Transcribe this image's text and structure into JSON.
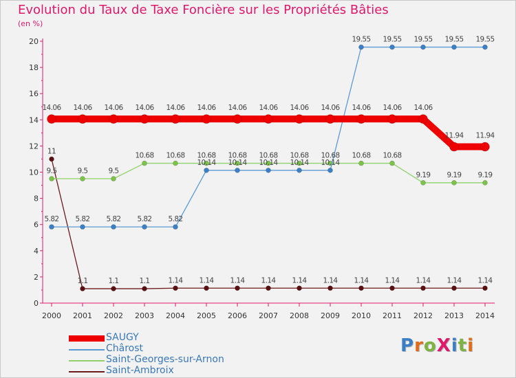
{
  "title": "Evolution du Taux de Taxe Foncière sur les Propriétés Bâties",
  "unit": "(en %)",
  "logo": {
    "text": "ProXiti",
    "colors": [
      "#3b7fc4",
      "#e06c1a",
      "#7cb342",
      "#e0186c",
      "#3b7fc4",
      "#7cb342",
      "#e06c1a"
    ]
  },
  "chart_data": {
    "type": "line",
    "title": "Evolution du Taux de Taxe Foncière sur les Propriétés Bâties",
    "ylabel": "(en %)",
    "xlabel": "",
    "ylim": [
      0,
      20
    ],
    "yticks": [
      0,
      2,
      4,
      6,
      8,
      10,
      12,
      14,
      16,
      18,
      20
    ],
    "x": [
      "2000",
      "2001",
      "2002",
      "2003",
      "2004",
      "2005",
      "2006",
      "2007",
      "2008",
      "2009",
      "2010",
      "2011",
      "2012",
      "2013",
      "2014"
    ],
    "grid": false,
    "series": [
      {
        "name": "Saint-Ambroix",
        "color": "#6b1a1a",
        "values": [
          11,
          1.1,
          1.1,
          1.1,
          1.14,
          1.14,
          1.14,
          1.14,
          1.14,
          1.14,
          1.14,
          1.14,
          1.14,
          1.14,
          1.14
        ],
        "labels": [
          "11",
          "1.1",
          "1.1",
          "1.1",
          "1.14",
          "1.14",
          "1.14",
          "1.14",
          "1.14",
          "1.14",
          "1.14",
          "1.14",
          "1.14",
          "1.14",
          "1.14"
        ]
      },
      {
        "name": "Saint-Georges-sur-Arnon",
        "color": "#8fd16a",
        "values": [
          9.5,
          9.5,
          9.5,
          10.68,
          10.68,
          10.68,
          10.68,
          10.68,
          10.68,
          10.68,
          10.68,
          10.68,
          9.19,
          9.19,
          9.19
        ],
        "labels": [
          "9.5",
          "9.5",
          "9.5",
          "10.68",
          "10.68",
          "10.68",
          "10.68",
          "10.68",
          "10.68",
          "10.68",
          "10.68",
          "10.68",
          "9.19",
          "9.19",
          "9.19"
        ]
      },
      {
        "name": "Chârost",
        "color": "#5b9bd5",
        "values": [
          5.82,
          5.82,
          5.82,
          5.82,
          5.82,
          10.14,
          10.14,
          10.14,
          10.14,
          10.14,
          19.55,
          19.55,
          19.55,
          19.55,
          19.55
        ],
        "labels": [
          "5.82",
          "5.82",
          "5.82",
          "5.82",
          "5.82",
          "10.14",
          "10.14",
          "10.14",
          "10.14",
          "10.14",
          "19.55",
          "19.55",
          "19.55",
          "19.55",
          "19.55"
        ]
      },
      {
        "name": "SAUGY",
        "color": "#ee0000",
        "values": [
          14.06,
          14.06,
          14.06,
          14.06,
          14.06,
          14.06,
          14.06,
          14.06,
          14.06,
          14.06,
          14.06,
          14.06,
          14.06,
          11.94,
          11.94
        ],
        "labels": [
          "14.06",
          "14.06",
          "14.06",
          "14.06",
          "14.06",
          "14.06",
          "14.06",
          "14.06",
          "14.06",
          "14.06",
          "14.06",
          "14.06",
          "14.06",
          "11.94",
          "11.94"
        ]
      }
    ],
    "legend": [
      "SAUGY",
      "Chârost",
      "Saint-Georges-sur-Arnon",
      "Saint-Ambroix"
    ]
  }
}
